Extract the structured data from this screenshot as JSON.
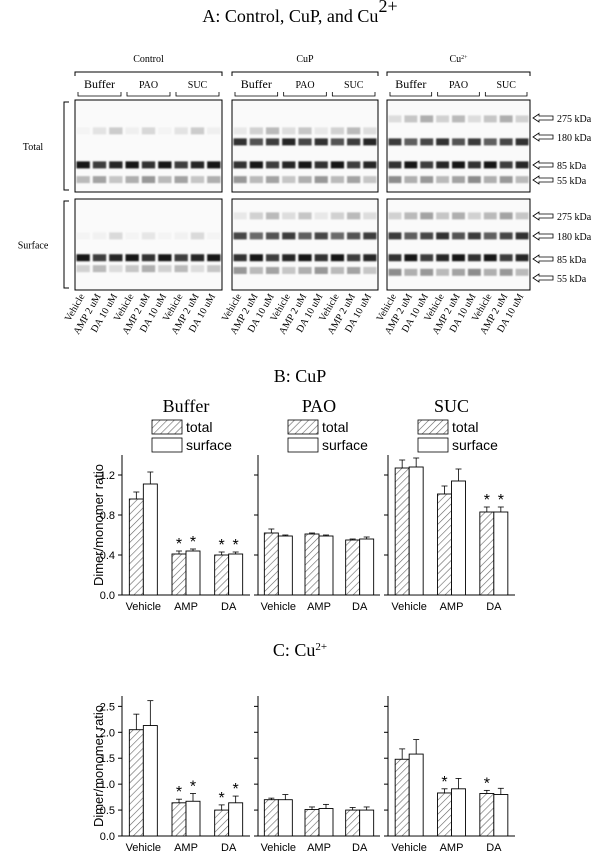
{
  "blot": {
    "title": {
      "text": "A: Control, CuP, and Cu",
      "sup": "2+"
    },
    "panels": [
      {
        "name": {
          "text": "Control"
        }
      },
      {
        "name": {
          "text": "CuP"
        }
      },
      {
        "name": {
          "text": "Cu",
          "sup": "2+"
        }
      }
    ],
    "groups": [
      "Buffer",
      "PAO",
      "SUC"
    ],
    "rows": [
      "Total",
      "Surface"
    ],
    "lanes": [
      "Vehicle",
      "AMP 2 uM",
      "DA 10 uM"
    ],
    "markers": [
      "275 kDa",
      "180 kDa",
      "85 kDa",
      "55 kDa"
    ]
  },
  "sections": [
    {
      "title": {
        "text": "B: CuP"
      }
    },
    {
      "title": {
        "text": "C: Cu",
        "sup": "2+"
      }
    }
  ],
  "chart_data": [
    {
      "type": "bar",
      "section": 0,
      "title": "Buffer",
      "legend": true,
      "tick_labels": true,
      "ylabel": "Dimer/monomer ratio",
      "categories": [
        "Vehicle",
        "AMP",
        "DA"
      ],
      "series": [
        {
          "name": "total",
          "color": "#ffffff",
          "hatch": true,
          "values": [
            0.96,
            0.41,
            0.4
          ],
          "errors": [
            0.07,
            0.03,
            0.03
          ],
          "marks": [
            null,
            "*",
            "*"
          ]
        },
        {
          "name": "surface",
          "color": "#ffffff",
          "hatch": false,
          "values": [
            1.11,
            0.44,
            0.41
          ],
          "errors": [
            0.12,
            0.02,
            0.02
          ],
          "marks": [
            null,
            "*",
            "*"
          ]
        }
      ],
      "ylim": [
        0,
        1.4
      ],
      "yticks": [
        {
          "value": 0,
          "label": "0.0"
        },
        0.4,
        0.8,
        1.2
      ]
    },
    {
      "type": "bar",
      "section": 0,
      "title": "PAO",
      "legend": true,
      "tick_labels": false,
      "categories": [
        "Vehicle",
        "AMP",
        "DA"
      ],
      "series": [
        {
          "name": "total",
          "color": "#ffffff",
          "hatch": true,
          "values": [
            0.62,
            0.61,
            0.55
          ],
          "errors": [
            0.04,
            0.01,
            0.01
          ],
          "marks": [
            null,
            null,
            null
          ]
        },
        {
          "name": "surface",
          "color": "#ffffff",
          "hatch": false,
          "values": [
            0.59,
            0.59,
            0.56
          ],
          "errors": [
            0.01,
            0.01,
            0.02
          ],
          "marks": [
            null,
            null,
            null
          ]
        }
      ],
      "ylim": [
        0,
        1.4
      ],
      "yticks": [
        {
          "value": 0,
          "label": "0.0"
        },
        0.4,
        0.8,
        1.2
      ]
    },
    {
      "type": "bar",
      "section": 0,
      "title": "SUC",
      "legend": true,
      "tick_labels": false,
      "categories": [
        "Vehicle",
        "AMP",
        "DA"
      ],
      "series": [
        {
          "name": "total",
          "color": "#ffffff",
          "hatch": true,
          "values": [
            1.27,
            1.01,
            0.83
          ],
          "errors": [
            0.08,
            0.08,
            0.05
          ],
          "marks": [
            null,
            null,
            "*"
          ]
        },
        {
          "name": "surface",
          "color": "#ffffff",
          "hatch": false,
          "values": [
            1.28,
            1.14,
            0.83
          ],
          "errors": [
            0.09,
            0.12,
            0.05
          ],
          "marks": [
            null,
            null,
            "*"
          ]
        }
      ],
      "ylim": [
        0,
        1.4
      ],
      "yticks": [
        {
          "value": 0,
          "label": "0.0"
        },
        0.4,
        0.8,
        1.2
      ]
    },
    {
      "type": "bar",
      "section": 1,
      "legend": false,
      "tick_labels": true,
      "ylabel": "Dimer/monomer ratio",
      "categories": [
        "Vehicle",
        "AMP",
        "DA"
      ],
      "series": [
        {
          "name": "total",
          "color": "#ffffff",
          "hatch": true,
          "values": [
            2.05,
            0.64,
            0.5
          ],
          "errors": [
            0.3,
            0.07,
            0.1
          ],
          "marks": [
            null,
            "*",
            "*"
          ]
        },
        {
          "name": "surface",
          "color": "#ffffff",
          "hatch": false,
          "values": [
            2.13,
            0.67,
            0.64
          ],
          "errors": [
            0.48,
            0.15,
            0.13
          ],
          "marks": [
            null,
            "*",
            "*"
          ]
        }
      ],
      "ylim": [
        0,
        2.7
      ],
      "yticks": [
        {
          "value": 0,
          "label": "0.0"
        },
        0.5,
        {
          "value": 1,
          "label": "1.0"
        },
        1.5,
        {
          "value": 2,
          "label": "2.0"
        },
        2.5
      ]
    },
    {
      "type": "bar",
      "section": 1,
      "legend": false,
      "tick_labels": false,
      "categories": [
        "Vehicle",
        "AMP",
        "DA"
      ],
      "series": [
        {
          "name": "total",
          "color": "#ffffff",
          "hatch": true,
          "values": [
            0.7,
            0.51,
            0.5
          ],
          "errors": [
            0.03,
            0.05,
            0.05
          ],
          "marks": [
            null,
            null,
            null
          ]
        },
        {
          "name": "surface",
          "color": "#ffffff",
          "hatch": false,
          "values": [
            0.7,
            0.53,
            0.5
          ],
          "errors": [
            0.1,
            0.08,
            0.06
          ],
          "marks": [
            null,
            null,
            null
          ]
        }
      ],
      "ylim": [
        0,
        2.7
      ],
      "yticks": [
        {
          "value": 0,
          "label": "0.0"
        },
        0.5,
        {
          "value": 1,
          "label": "1.0"
        },
        1.5,
        {
          "value": 2,
          "label": "2.0"
        },
        2.5
      ]
    },
    {
      "type": "bar",
      "section": 1,
      "legend": false,
      "tick_labels": false,
      "categories": [
        "Vehicle",
        "AMP",
        "DA"
      ],
      "series": [
        {
          "name": "total",
          "color": "#ffffff",
          "hatch": true,
          "values": [
            1.48,
            0.83,
            0.82
          ],
          "errors": [
            0.2,
            0.08,
            0.06
          ],
          "marks": [
            null,
            "*",
            "*"
          ]
        },
        {
          "name": "surface",
          "color": "#ffffff",
          "hatch": false,
          "values": [
            1.58,
            0.91,
            0.8
          ],
          "errors": [
            0.28,
            0.2,
            0.12
          ],
          "marks": [
            null,
            null,
            null
          ]
        }
      ],
      "ylim": [
        0,
        2.7
      ],
      "yticks": [
        {
          "value": 0,
          "label": "0.0"
        },
        0.5,
        {
          "value": 1,
          "label": "1.0"
        },
        1.5,
        {
          "value": 2,
          "label": "2.0"
        },
        2.5
      ]
    }
  ]
}
